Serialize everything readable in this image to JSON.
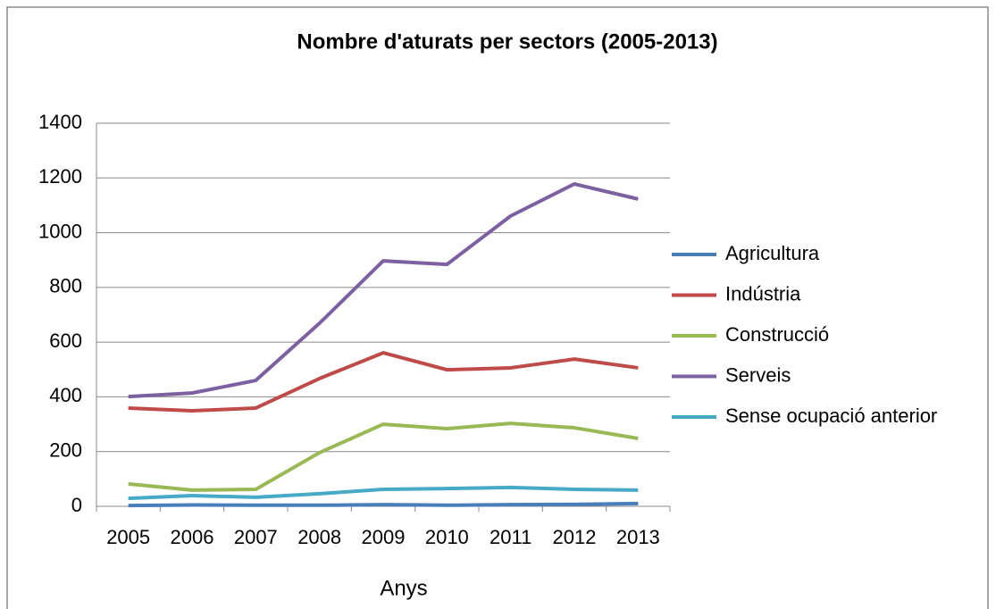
{
  "chart_data": {
    "type": "line",
    "title": "Nombre d'aturats per sectors (2005-2013)",
    "x_label": "Anys",
    "categories": [
      "2005",
      "2006",
      "2007",
      "2008",
      "2009",
      "2010",
      "2011",
      "2012",
      "2013"
    ],
    "series": [
      {
        "name": "Agricultura",
        "color": "#4a7ebb",
        "values": [
          3,
          5,
          4,
          4,
          6,
          4,
          6,
          7,
          10
        ]
      },
      {
        "name": "Indústria",
        "color": "#be4b48",
        "values": [
          359,
          349,
          359,
          467,
          561,
          499,
          506,
          538,
          506
        ]
      },
      {
        "name": "Construcció",
        "color": "#98b954",
        "values": [
          82,
          59,
          62,
          196,
          300,
          284,
          303,
          287,
          248
        ]
      },
      {
        "name": "Serveis",
        "color": "#7d60a0",
        "values": [
          401,
          414,
          460,
          669,
          897,
          884,
          1061,
          1178,
          1123
        ]
      },
      {
        "name": "Sense ocupació anterior",
        "color": "#46aac5",
        "values": [
          29,
          39,
          33,
          46,
          62,
          65,
          69,
          62,
          59
        ]
      }
    ],
    "ylim": [
      0,
      1400
    ],
    "yticks": [
      0,
      200,
      400,
      600,
      800,
      1000,
      1200,
      1400
    ],
    "grid": true,
    "legend": "right"
  }
}
